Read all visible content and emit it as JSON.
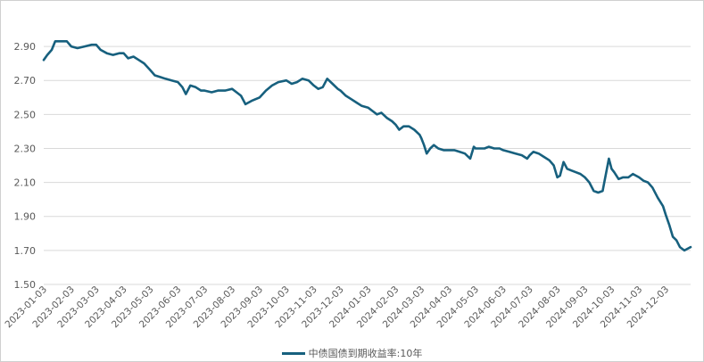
{
  "chart_data": {
    "type": "line",
    "series_name": "中债国债到期收益率:10年",
    "color": "#17607e",
    "ylim": [
      1.5,
      3.0
    ],
    "yticks": [
      "2.90",
      "2.70",
      "2.50",
      "2.30",
      "2.10",
      "1.90",
      "1.70",
      "1.50"
    ],
    "xticks": [
      "2023-01-03",
      "2023-02-03",
      "2023-03-03",
      "2023-04-03",
      "2023-05-03",
      "2023-06-03",
      "2023-07-03",
      "2023-08-03",
      "2023-09-03",
      "2023-10-03",
      "2023-11-03",
      "2023-12-03",
      "2024-01-03",
      "2024-02-03",
      "2024-03-03",
      "2024-04-03",
      "2024-05-03",
      "2024-06-03",
      "2024-07-03",
      "2024-08-03",
      "2024-09-03",
      "2024-10-03",
      "2024-11-03",
      "2024-12-03"
    ],
    "grid": true,
    "legend_position": "bottom",
    "points": [
      [
        "2023-01-03",
        2.82
      ],
      [
        "2023-01-07",
        2.85
      ],
      [
        "2023-01-12",
        2.88
      ],
      [
        "2023-01-16",
        2.93
      ],
      [
        "2023-01-22",
        2.93
      ],
      [
        "2023-01-29",
        2.93
      ],
      [
        "2023-02-03",
        2.9
      ],
      [
        "2023-02-10",
        2.89
      ],
      [
        "2023-02-18",
        2.9
      ],
      [
        "2023-02-26",
        2.91
      ],
      [
        "2023-03-03",
        2.91
      ],
      [
        "2023-03-08",
        2.88
      ],
      [
        "2023-03-15",
        2.86
      ],
      [
        "2023-03-22",
        2.85
      ],
      [
        "2023-03-29",
        2.86
      ],
      [
        "2023-04-03",
        2.86
      ],
      [
        "2023-04-08",
        2.83
      ],
      [
        "2023-04-14",
        2.84
      ],
      [
        "2023-04-20",
        2.82
      ],
      [
        "2023-04-26",
        2.8
      ],
      [
        "2023-05-03",
        2.76
      ],
      [
        "2023-05-08",
        2.73
      ],
      [
        "2023-05-14",
        2.72
      ],
      [
        "2023-05-20",
        2.71
      ],
      [
        "2023-05-27",
        2.7
      ],
      [
        "2023-06-03",
        2.69
      ],
      [
        "2023-06-08",
        2.66
      ],
      [
        "2023-06-12",
        2.62
      ],
      [
        "2023-06-17",
        2.67
      ],
      [
        "2023-06-23",
        2.66
      ],
      [
        "2023-06-29",
        2.64
      ],
      [
        "2023-07-03",
        2.64
      ],
      [
        "2023-07-11",
        2.63
      ],
      [
        "2023-07-18",
        2.64
      ],
      [
        "2023-07-26",
        2.64
      ],
      [
        "2023-08-03",
        2.65
      ],
      [
        "2023-08-08",
        2.63
      ],
      [
        "2023-08-13",
        2.61
      ],
      [
        "2023-08-18",
        2.56
      ],
      [
        "2023-08-25",
        2.58
      ],
      [
        "2023-09-03",
        2.6
      ],
      [
        "2023-09-10",
        2.64
      ],
      [
        "2023-09-17",
        2.67
      ],
      [
        "2023-09-24",
        2.69
      ],
      [
        "2023-10-03",
        2.7
      ],
      [
        "2023-10-09",
        2.68
      ],
      [
        "2023-10-15",
        2.69
      ],
      [
        "2023-10-21",
        2.71
      ],
      [
        "2023-10-28",
        2.7
      ],
      [
        "2023-11-03",
        2.67
      ],
      [
        "2023-11-08",
        2.65
      ],
      [
        "2023-11-13",
        2.66
      ],
      [
        "2023-11-18",
        2.71
      ],
      [
        "2023-11-24",
        2.68
      ],
      [
        "2023-11-30",
        2.65
      ],
      [
        "2023-12-03",
        2.64
      ],
      [
        "2023-12-09",
        2.61
      ],
      [
        "2023-12-15",
        2.59
      ],
      [
        "2023-12-21",
        2.57
      ],
      [
        "2023-12-27",
        2.55
      ],
      [
        "2024-01-03",
        2.54
      ],
      [
        "2024-01-08",
        2.52
      ],
      [
        "2024-01-13",
        2.5
      ],
      [
        "2024-01-18",
        2.51
      ],
      [
        "2024-01-24",
        2.48
      ],
      [
        "2024-01-30",
        2.46
      ],
      [
        "2024-02-03",
        2.44
      ],
      [
        "2024-02-07",
        2.41
      ],
      [
        "2024-02-12",
        2.43
      ],
      [
        "2024-02-18",
        2.43
      ],
      [
        "2024-02-24",
        2.41
      ],
      [
        "2024-03-01",
        2.38
      ],
      [
        "2024-03-03",
        2.36
      ],
      [
        "2024-03-06",
        2.32
      ],
      [
        "2024-03-09",
        2.27
      ],
      [
        "2024-03-13",
        2.3
      ],
      [
        "2024-03-17",
        2.32
      ],
      [
        "2024-03-22",
        2.3
      ],
      [
        "2024-03-28",
        2.29
      ],
      [
        "2024-04-03",
        2.29
      ],
      [
        "2024-04-09",
        2.29
      ],
      [
        "2024-04-15",
        2.28
      ],
      [
        "2024-04-21",
        2.27
      ],
      [
        "2024-04-27",
        2.24
      ],
      [
        "2024-05-01",
        2.31
      ],
      [
        "2024-05-03",
        2.3
      ],
      [
        "2024-05-08",
        2.3
      ],
      [
        "2024-05-13",
        2.3
      ],
      [
        "2024-05-18",
        2.31
      ],
      [
        "2024-05-24",
        2.3
      ],
      [
        "2024-05-30",
        2.3
      ],
      [
        "2024-06-03",
        2.29
      ],
      [
        "2024-06-10",
        2.28
      ],
      [
        "2024-06-17",
        2.27
      ],
      [
        "2024-06-24",
        2.26
      ],
      [
        "2024-06-30",
        2.24
      ],
      [
        "2024-07-03",
        2.26
      ],
      [
        "2024-07-07",
        2.28
      ],
      [
        "2024-07-13",
        2.27
      ],
      [
        "2024-07-19",
        2.25
      ],
      [
        "2024-07-25",
        2.23
      ],
      [
        "2024-07-30",
        2.2
      ],
      [
        "2024-08-03",
        2.13
      ],
      [
        "2024-08-06",
        2.14
      ],
      [
        "2024-08-10",
        2.22
      ],
      [
        "2024-08-14",
        2.18
      ],
      [
        "2024-08-19",
        2.17
      ],
      [
        "2024-08-24",
        2.16
      ],
      [
        "2024-08-29",
        2.15
      ],
      [
        "2024-09-03",
        2.13
      ],
      [
        "2024-09-08",
        2.1
      ],
      [
        "2024-09-13",
        2.05
      ],
      [
        "2024-09-18",
        2.04
      ],
      [
        "2024-09-23",
        2.05
      ],
      [
        "2024-09-30",
        2.24
      ],
      [
        "2024-10-03",
        2.18
      ],
      [
        "2024-10-06",
        2.16
      ],
      [
        "2024-10-11",
        2.12
      ],
      [
        "2024-10-16",
        2.13
      ],
      [
        "2024-10-22",
        2.13
      ],
      [
        "2024-10-27",
        2.15
      ],
      [
        "2024-11-03",
        2.13
      ],
      [
        "2024-11-08",
        2.11
      ],
      [
        "2024-11-13",
        2.1
      ],
      [
        "2024-11-18",
        2.07
      ],
      [
        "2024-11-24",
        2.01
      ],
      [
        "2024-11-30",
        1.96
      ],
      [
        "2024-12-03",
        1.91
      ],
      [
        "2024-12-07",
        1.85
      ],
      [
        "2024-12-11",
        1.78
      ],
      [
        "2024-12-15",
        1.76
      ],
      [
        "2024-12-19",
        1.72
      ],
      [
        "2024-12-24",
        1.7
      ],
      [
        "2024-12-31",
        1.72
      ]
    ]
  }
}
